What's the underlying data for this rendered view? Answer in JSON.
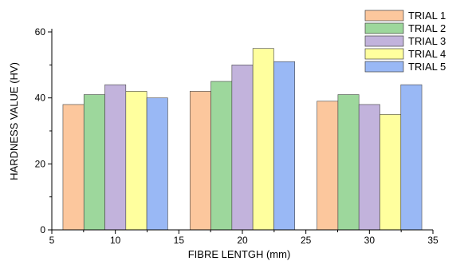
{
  "chart_data": {
    "type": "bar",
    "title": "",
    "xlabel": "FIBRE LENTGH (mm)",
    "ylabel": "HARDNESS VALUE (HV)",
    "xlim": [
      5,
      35
    ],
    "ylim": [
      0,
      60
    ],
    "x_ticks": [
      5,
      10,
      15,
      20,
      25,
      30,
      35
    ],
    "y_ticks": [
      0,
      20,
      40,
      60
    ],
    "grid": false,
    "legend_position": "top-right",
    "groups": [
      10,
      20,
      30
    ],
    "series": [
      {
        "name": "TRIAL 1",
        "color": "#fcc79d",
        "values": [
          38,
          42,
          39
        ]
      },
      {
        "name": "TRIAL 2",
        "color": "#9dd79c",
        "values": [
          41,
          45,
          41
        ]
      },
      {
        "name": "TRIAL 3",
        "color": "#c2b3dc",
        "values": [
          44,
          50,
          38
        ]
      },
      {
        "name": "TRIAL 4",
        "color": "#ffff9e",
        "values": [
          42,
          55,
          35
        ]
      },
      {
        "name": "TRIAL 5",
        "color": "#99b8f5",
        "values": [
          40,
          51,
          44
        ]
      }
    ]
  }
}
